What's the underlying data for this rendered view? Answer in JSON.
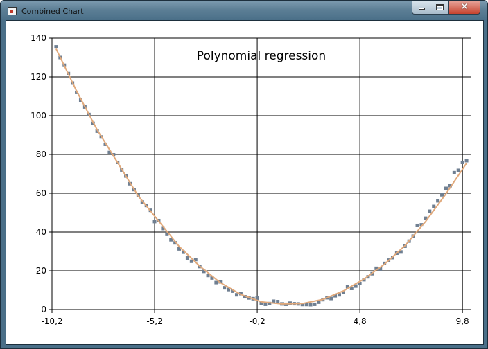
{
  "window": {
    "title": "Combined Chart",
    "close_glyph": "✕"
  },
  "icons": {
    "app": "chart-app-icon",
    "minimize": "minimize-icon",
    "maximize": "maximize-icon",
    "close": "close-icon"
  },
  "colors": {
    "frame": "#4a6f88",
    "points": "#6f7f91",
    "fit_line": "#e1a97b",
    "grid": "#000000"
  },
  "chart_data": {
    "type": "scatter",
    "title": "Polynomial regression",
    "xlabel": "",
    "ylabel": "",
    "xlim": [
      -10.2,
      10.2
    ],
    "ylim": [
      0,
      140
    ],
    "x_ticks": [
      -10.2,
      -5.2,
      -0.2,
      4.8,
      9.8
    ],
    "x_tick_labels": [
      "-10,2",
      "-5,2",
      "-0,2",
      "4,8",
      "9,8"
    ],
    "y_ticks": [
      0,
      20,
      40,
      60,
      80,
      100,
      120,
      140
    ],
    "y_tick_labels": [
      "0",
      "20",
      "40",
      "60",
      "80",
      "100",
      "120",
      "140"
    ],
    "grid": true,
    "series": [
      {
        "type": "scatter",
        "x": [
          -10.0,
          -9.8,
          -9.6,
          -9.4,
          -9.2,
          -9.0,
          -8.8,
          -8.6,
          -8.4,
          -8.2,
          -8.0,
          -7.8,
          -7.6,
          -7.4,
          -7.2,
          -7.0,
          -6.8,
          -6.6,
          -6.4,
          -6.2,
          -6.0,
          -5.8,
          -5.6,
          -5.4,
          -5.2,
          -5.0,
          -4.8,
          -4.6,
          -4.4,
          -4.2,
          -4.0,
          -3.8,
          -3.6,
          -3.4,
          -3.2,
          -3.0,
          -2.8,
          -2.6,
          -2.4,
          -2.2,
          -2.0,
          -1.8,
          -1.6,
          -1.4,
          -1.2,
          -1.0,
          -0.8,
          -0.6,
          -0.4,
          -0.2,
          0.0,
          0.2,
          0.4,
          0.6,
          0.8,
          1.0,
          1.2,
          1.4,
          1.6,
          1.8,
          2.0,
          2.2,
          2.4,
          2.6,
          2.8,
          3.0,
          3.2,
          3.4,
          3.6,
          3.8,
          4.0,
          4.2,
          4.4,
          4.6,
          4.8,
          5.0,
          5.2,
          5.4,
          5.6,
          5.8,
          6.0,
          6.2,
          6.4,
          6.6,
          6.8,
          7.0,
          7.2,
          7.4,
          7.6,
          7.8,
          8.0,
          8.2,
          8.4,
          8.6,
          8.8,
          9.0,
          9.2,
          9.4,
          9.6,
          9.8,
          10.0
        ],
        "y": [
          135.5,
          130.0,
          126.0,
          121.7,
          116.8,
          112.0,
          108.0,
          104.5,
          100.6,
          96.0,
          92.0,
          89.0,
          85.2,
          81.0,
          79.8,
          75.9,
          72.0,
          68.9,
          64.9,
          61.9,
          58.8,
          55.5,
          53.7,
          51.2,
          45.4,
          45.9,
          41.8,
          38.8,
          36.0,
          34.4,
          31.3,
          29.6,
          26.6,
          24.9,
          25.8,
          22.2,
          19.7,
          17.6,
          16.3,
          13.9,
          14.3,
          11.2,
          10.3,
          9.5,
          7.6,
          8.2,
          6.6,
          6.0,
          5.6,
          5.9,
          3.2,
          2.7,
          3.1,
          4.3,
          4.1,
          2.9,
          2.7,
          3.3,
          3.0,
          2.9,
          2.6,
          2.6,
          2.5,
          2.7,
          3.8,
          5.1,
          6.1,
          5.7,
          7.1,
          7.6,
          8.8,
          11.8,
          10.9,
          12.1,
          13.4,
          15.4,
          16.9,
          18.5,
          21.3,
          20.9,
          23.8,
          25.5,
          26.8,
          29.1,
          29.7,
          32.7,
          35.3,
          37.9,
          43.4,
          43.7,
          47.1,
          50.7,
          53.2,
          56.1,
          59.2,
          62.5,
          63.9,
          70.6,
          71.8,
          75.9,
          76.8
        ]
      },
      {
        "type": "line",
        "x": [
          -10.0,
          -9.0,
          -8.0,
          -7.0,
          -6.0,
          -5.0,
          -4.0,
          -3.0,
          -2.0,
          -1.0,
          0.0,
          1.0,
          2.0,
          3.0,
          4.0,
          5.0,
          6.0,
          7.0,
          8.0,
          9.0,
          10.0
        ],
        "y": [
          134.5,
          112.7,
          92.7,
          75.8,
          58.6,
          45.6,
          32.5,
          22.4,
          13.9,
          7.8,
          4.0,
          2.9,
          3.1,
          5.2,
          9.6,
          15.7,
          23.4,
          33.0,
          45.4,
          59.8,
          75.5
        ]
      }
    ]
  }
}
